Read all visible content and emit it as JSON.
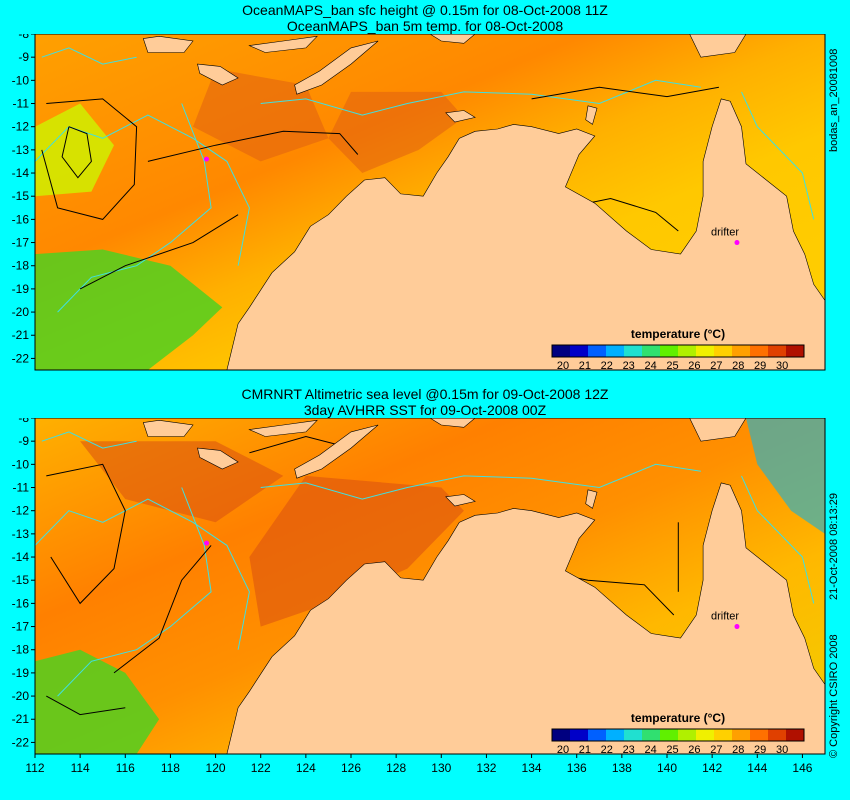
{
  "panels": [
    {
      "title_line1": "OceanMAPS_ban sfc height @ 0.15m for 08-Oct-2008 11Z",
      "title_line2": "OceanMAPS_ban 5m temp. for 08-Oct-2008",
      "side_label": "bodas_an_20081008",
      "drifter_label": "drifter",
      "drifter_lon": 143.1,
      "drifter_lat": -17.0
    },
    {
      "title_line1": "CMRNRT Altimetric sea level  @0.15m  for 09-Oct-2008 12Z",
      "title_line2": "3day AVHRR SST for 09-Oct-2008 00Z",
      "side_label": "21-Oct-2008 08:13:29",
      "side_label2": "© Copyright CSIRO 2008",
      "drifter_label": "drifter",
      "drifter_lon": 143.1,
      "drifter_lat": -17.0
    }
  ],
  "map_extent": {
    "lon_min": 112,
    "lon_max": 147,
    "lat_min": -22.5,
    "lat_max": -8
  },
  "lat_ticks": [
    -8,
    -9,
    -10,
    -11,
    -12,
    -13,
    -14,
    -15,
    -16,
    -17,
    -18,
    -19,
    -20,
    -21,
    -22
  ],
  "lon_ticks": [
    112,
    114,
    116,
    118,
    120,
    122,
    124,
    126,
    128,
    130,
    132,
    134,
    136,
    138,
    140,
    142,
    144,
    146
  ],
  "colorbar": {
    "label": "temperature (°C)",
    "ticks": [
      20,
      21,
      22,
      23,
      24,
      25,
      26,
      27,
      28,
      29,
      30
    ],
    "min": 19.5,
    "max": 31,
    "colors": [
      "#000080",
      "#0000c8",
      "#0060ff",
      "#00b0ff",
      "#20e0d0",
      "#30e070",
      "#60f000",
      "#b0f000",
      "#f0f000",
      "#ffd000",
      "#ffa000",
      "#ff7000",
      "#e04000",
      "#b01000"
    ]
  },
  "colors": {
    "background": "#00ffff",
    "land": "#ffcc99",
    "contour_ssh": "#000000",
    "contour_bathy": "#40e0e0",
    "drifter": "#ff00ff"
  }
}
